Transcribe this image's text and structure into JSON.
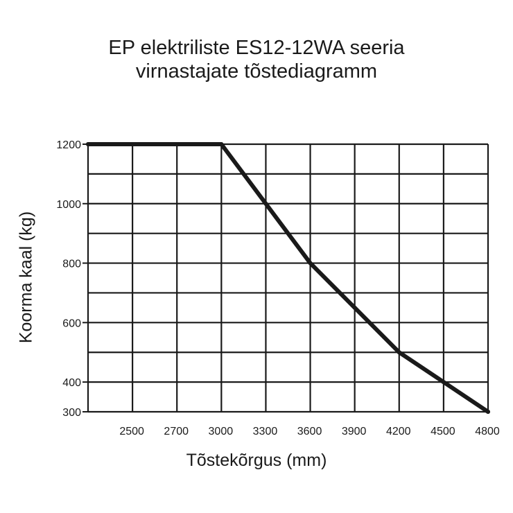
{
  "chart_data": {
    "type": "line",
    "title_line1": "EP elektriliste ES12-12WA seeria",
    "title_line2": "virnastajate tõstediagramm",
    "xlabel": "Tõstekõrgus (mm)",
    "ylabel": "Koorma kaal (kg)",
    "x_ticks": [
      "2500",
      "2700",
      "3000",
      "3300",
      "3600",
      "3900",
      "4200",
      "4500",
      "4800"
    ],
    "y_ticks": [
      "1200",
      "1000",
      "800",
      "600",
      "400",
      "300"
    ],
    "series": [
      {
        "x": [
          "2300",
          "3000",
          "3300",
          "3600",
          "3900",
          "4200",
          "4500",
          "4800"
        ],
        "values": [
          1200,
          1200,
          1000,
          800,
          650,
          500,
          400,
          300
        ]
      }
    ],
    "grid": true,
    "colors": {
      "line": "#1a1a1a",
      "grid": "#1a1a1a"
    }
  }
}
